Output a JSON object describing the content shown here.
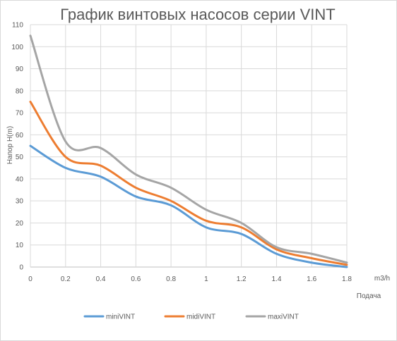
{
  "chart_data": {
    "type": "line",
    "title": "График винтовых насосов серии VINT",
    "xlabel": "Подача",
    "x_unit": "m3/h",
    "ylabel": "Напор  H(m)",
    "xlim": [
      0,
      1.8
    ],
    "ylim": [
      0,
      110
    ],
    "x_ticks": [
      "0",
      "0.2",
      "0.4",
      "0.6",
      "0.8",
      "1",
      "1.2",
      "1.4",
      "1.6",
      "1.8"
    ],
    "y_ticks": [
      "0",
      "10",
      "20",
      "30",
      "40",
      "50",
      "60",
      "70",
      "80",
      "90",
      "100",
      "110"
    ],
    "grid": true,
    "legend_position": "bottom",
    "x": [
      0,
      0.2,
      0.4,
      0.6,
      0.8,
      1.0,
      1.2,
      1.4,
      1.6,
      1.8
    ],
    "series": [
      {
        "name": "miniVINT",
        "color": "#5b9bd5",
        "values": [
          55,
          45,
          41,
          32,
          28,
          18,
          15,
          6,
          2,
          0
        ]
      },
      {
        "name": "midiVINT",
        "color": "#ed7d31",
        "values": [
          75,
          50,
          46,
          36,
          30,
          21,
          18,
          8,
          4,
          1
        ]
      },
      {
        "name": "maxiVINT",
        "color": "#a5a5a5",
        "values": [
          105,
          57,
          54,
          42,
          36,
          26,
          20,
          9,
          6,
          2
        ]
      }
    ]
  }
}
